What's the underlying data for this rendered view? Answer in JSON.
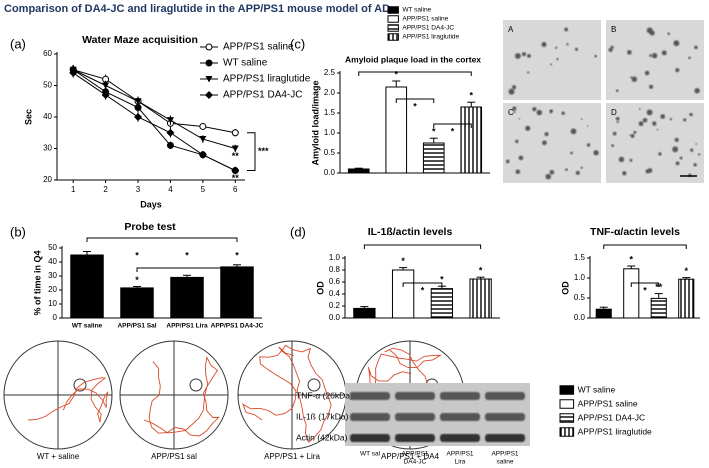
{
  "figure_title": "Comparison of DA4-JC and liraglutide in the APP/PS1 mouse model of AD",
  "panels": [
    "(a)",
    "(b)",
    "(c)",
    "(d)"
  ],
  "chart_data": [
    {
      "type": "line",
      "title": "Water Maze acquisition",
      "xlabel": "Days",
      "ylabel": "Sec",
      "x": [
        1,
        2,
        3,
        4,
        5,
        6
      ],
      "xlim": [
        0.5,
        6.3
      ],
      "xticks": [
        1,
        2,
        3,
        4,
        5,
        6
      ],
      "ylim": [
        20,
        60
      ],
      "yticks": [
        20,
        30,
        40,
        50,
        60
      ],
      "bracket_label": "***",
      "series": [
        {
          "name": "APP/PS1 saline",
          "color": "#000000",
          "marker": "open-circle",
          "values": [
            55,
            52,
            45,
            38,
            37,
            35
          ],
          "errors": [
            1.5,
            1.5,
            1.5,
            1.5,
            1,
            1.2
          ]
        },
        {
          "name": "WT saline",
          "color": "#000000",
          "marker": "circle",
          "values": [
            55,
            48,
            43,
            31,
            28,
            23
          ],
          "errors": [
            1.5,
            1.5,
            1.5,
            1.2,
            1,
            1
          ]
        },
        {
          "name": "APP/PS1 liraglutide",
          "color": "#000000",
          "marker": "triangle-down",
          "values": [
            55,
            50,
            45,
            39,
            33,
            30
          ],
          "errors": [
            1.5,
            1.5,
            1.5,
            1.5,
            1.2,
            1.2
          ],
          "point_labels": [
            null,
            null,
            null,
            null,
            null,
            "**"
          ]
        },
        {
          "name": "APP/PS1 DA4-JC",
          "color": "#000000",
          "marker": "diamond",
          "values": [
            54,
            47,
            40,
            35,
            28,
            23
          ],
          "errors": [
            1.5,
            1.5,
            1.5,
            1.5,
            1.2,
            1
          ],
          "point_labels": [
            null,
            null,
            null,
            null,
            null,
            "**"
          ]
        }
      ]
    },
    {
      "type": "bar",
      "title": "Probe test",
      "ylabel": "% of time in Q4",
      "categories": [
        "WT saline",
        "APP/PS1 Sal",
        "APP/PS1 Lira",
        "APP/PS1 DA4-JC"
      ],
      "values": [
        45,
        21.5,
        29,
        36.5
      ],
      "errors": [
        2.5,
        1,
        1.5,
        1.5
      ],
      "color": "#000000",
      "ylim": [
        0,
        50
      ],
      "yticks": [
        0,
        10,
        20,
        30,
        40,
        50
      ],
      "significance": [
        null,
        "*",
        null,
        null
      ],
      "bracket_labels": [
        "*",
        "*",
        "*"
      ]
    },
    {
      "type": "bar",
      "title": "Amyloid plaque load in the cortex",
      "ylabel": "Amyloid load/image",
      "ylim": [
        0,
        2.5
      ],
      "yticks": [
        {
          "value": 0,
          "label": "0.0"
        },
        {
          "value": 0.5,
          "label": "0.5"
        },
        {
          "value": 1,
          "label": "1.0"
        },
        {
          "value": 1.5,
          "label": "1.5"
        },
        {
          "value": 2,
          "label": "2.0"
        },
        {
          "value": 2.5,
          "label": "2.5"
        }
      ],
      "series": [
        {
          "name": "WT saline",
          "pattern": "solid",
          "color": "#000000",
          "values": [
            0.1
          ],
          "errors": [
            0.02
          ]
        },
        {
          "name": "APP/PS1 saline",
          "pattern": "open",
          "color": "#000000",
          "values": [
            2.15
          ],
          "errors": [
            0.15
          ]
        },
        {
          "name": "APP/PS1 DA4-JC",
          "pattern": "hlines",
          "color": "#000000",
          "values": [
            0.75
          ],
          "errors": [
            0.12
          ]
        },
        {
          "name": "APP/PS1 liraglutide",
          "pattern": "vlines",
          "color": "#000000",
          "values": [
            1.65
          ],
          "errors": [
            0.12
          ]
        }
      ],
      "significance": [
        "*",
        "*",
        "*"
      ],
      "bracket_labels": [
        "*",
        "*"
      ]
    },
    {
      "type": "bar",
      "title": "IL-1ß/actin levels",
      "ylabel": "OD",
      "ylim": [
        0,
        1
      ],
      "yticks": [
        {
          "value": 0,
          "label": "0.0"
        },
        0.2,
        0.4,
        0.6,
        0.8,
        {
          "value": 1,
          "label": "1.0"
        }
      ],
      "series": [
        {
          "name": "WT saline",
          "pattern": "solid",
          "color": "#000000",
          "values": [
            0.16
          ],
          "errors": [
            0.03
          ]
        },
        {
          "name": "APP/PS1 saline",
          "pattern": "open",
          "color": "#000000",
          "values": [
            0.8
          ],
          "errors": [
            0.04
          ]
        },
        {
          "name": "APP/PS1 DA4-JC",
          "pattern": "hlines",
          "color": "#000000",
          "values": [
            0.49
          ],
          "errors": [
            0.04
          ]
        },
        {
          "name": "APP/PS1 liraglutide",
          "pattern": "vlines",
          "color": "#000000",
          "values": [
            0.65
          ],
          "errors": [
            0.03
          ]
        }
      ],
      "significance": [
        "*",
        "*",
        "*"
      ],
      "bracket_labels": [
        "*"
      ]
    },
    {
      "type": "bar",
      "title": "TNF-α/actin levels",
      "ylabel": "OD",
      "ylim": [
        0,
        1.5
      ],
      "yticks": [
        {
          "value": 0,
          "label": "0.0"
        },
        0.5,
        {
          "value": 1,
          "label": "1.0"
        },
        1.5
      ],
      "series": [
        {
          "pattern": "solid",
          "color": "#000000",
          "values": [
            0.22
          ],
          "errors": [
            0.05
          ]
        },
        {
          "pattern": "open",
          "color": "#000000",
          "values": [
            1.23
          ],
          "errors": [
            0.07
          ]
        },
        {
          "pattern": "hlines",
          "color": "#000000",
          "values": [
            0.49
          ],
          "errors": [
            0.12
          ]
        },
        {
          "pattern": "vlines",
          "color": "#000000",
          "values": [
            0.97
          ],
          "errors": [
            0.04
          ]
        }
      ],
      "significance": [
        "*",
        "**",
        "*"
      ],
      "bracket_labels": [
        "*"
      ]
    }
  ],
  "micrographs": {
    "labels": [
      "A",
      "B",
      "C",
      "D"
    ]
  },
  "swim_paths": {
    "labels": [
      "WT + saline",
      "APP/PS1 sal",
      "APP/PS1 + Lira",
      "APP/PS1 + DA4"
    ]
  },
  "western_blot": {
    "bands": [
      "TNF-α (26kDa)",
      "IL-1ß (17kDa)",
      "Actin (42kDa)"
    ],
    "lanes": [
      [
        "WT sal"
      ],
      [
        "APP/PS1",
        "DA4-JC"
      ],
      [
        "APP/PS1",
        "Lira"
      ],
      [
        "APP/PS1",
        "saline"
      ]
    ]
  }
}
